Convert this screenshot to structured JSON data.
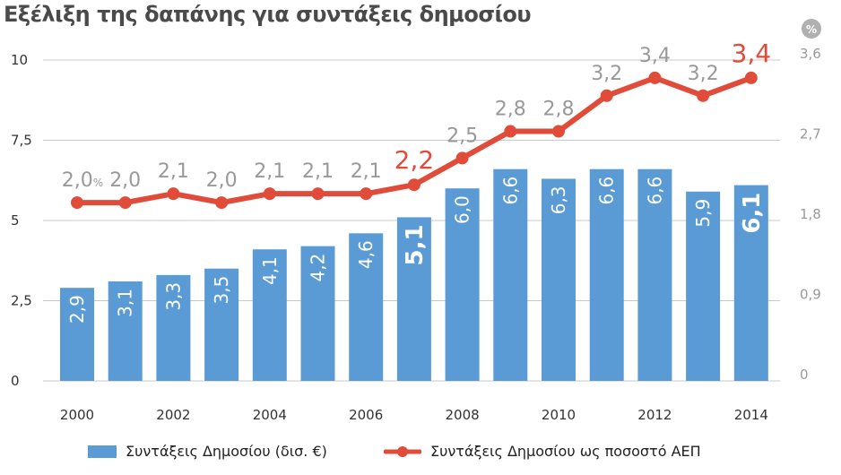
{
  "chart_data": {
    "type": "bar+line",
    "title": "Εξέλιξη της δαπάνης για συντάξεις δημοσίου",
    "categories": [
      "2000",
      "2001",
      "2002",
      "2003",
      "2004",
      "2005",
      "2006",
      "2007",
      "2008",
      "2009",
      "2010",
      "2011",
      "2012",
      "2013",
      "2014"
    ],
    "x_tick_labels": [
      "2000",
      "2002",
      "2004",
      "2006",
      "2008",
      "2010",
      "2012",
      "2014"
    ],
    "left_axis": {
      "ylim": [
        0,
        10
      ],
      "ticks": [
        "0",
        "2,5",
        "5",
        "7,5",
        "10"
      ],
      "tick_values": [
        0,
        2.5,
        5,
        7.5,
        10
      ]
    },
    "right_axis": {
      "unit": "%",
      "ylim": [
        0,
        3.6
      ],
      "ticks": [
        "0",
        "0,9",
        "1,8",
        "2,7",
        "3,6"
      ],
      "tick_values": [
        0,
        0.9,
        1.8,
        2.7,
        3.6
      ]
    },
    "grid": true,
    "legend_position": "bottom",
    "series": [
      {
        "name": "Συντάξεις Δημοσίου (δισ. €)",
        "type": "bar",
        "axis": "left",
        "color": "#5b9bd5",
        "values": [
          2.9,
          3.1,
          3.3,
          3.5,
          4.1,
          4.2,
          4.6,
          5.1,
          6.0,
          6.6,
          6.3,
          6.6,
          6.6,
          5.9,
          6.1
        ],
        "labels": [
          "2,9",
          "3,1",
          "3,3",
          "3,5",
          "4,1",
          "4,2",
          "4,6",
          "5,1",
          "6,0",
          "6,6",
          "6,3",
          "6,6",
          "6,6",
          "5,9",
          "6,1"
        ],
        "highlighted": [
          "2007",
          "2014"
        ]
      },
      {
        "name": "Συντάξεις Δημοσίου ως ποσοστό ΑΕΠ",
        "type": "line",
        "axis": "right",
        "color": "#e04b3a",
        "values": [
          2.0,
          2.0,
          2.1,
          2.0,
          2.1,
          2.1,
          2.1,
          2.2,
          2.5,
          2.8,
          2.8,
          3.2,
          3.4,
          3.2,
          3.4
        ],
        "labels": [
          "2,0",
          "2,0",
          "2,1",
          "2,0",
          "2,1",
          "2,1",
          "2,1",
          "2,2",
          "2,5",
          "2,8",
          "2,8",
          "3,2",
          "3,4",
          "3,2",
          "3,4"
        ],
        "first_label_suffix": "%",
        "highlighted": [
          "2007",
          "2014"
        ]
      }
    ]
  }
}
